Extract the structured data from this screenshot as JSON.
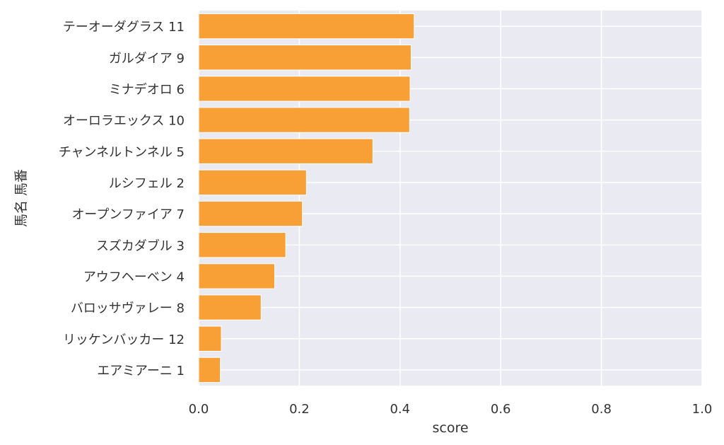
{
  "chart_data": {
    "type": "bar",
    "orientation": "horizontal",
    "categories": [
      "テーオーダグラス 11",
      "ガルダイア 9",
      "ミナデオロ 6",
      "オーロラエックス 10",
      "チャンネルトンネル 5",
      "ルシフェル 2",
      "オープンファイア 7",
      "スズカダブル 3",
      "アウフヘーベン 4",
      "バロッサヴァレー 8",
      "リッケンバッカー 12",
      "エアミアーニ 1"
    ],
    "values": [
      0.428,
      0.422,
      0.42,
      0.419,
      0.346,
      0.214,
      0.206,
      0.173,
      0.151,
      0.124,
      0.045,
      0.043
    ],
    "xlabel": "score",
    "ylabel": "馬名 馬番",
    "xlim": [
      0,
      1.0
    ],
    "xticks": [
      "0.0",
      "0.2",
      "0.4",
      "0.6",
      "0.8",
      "1.0"
    ],
    "grid": true,
    "colors": {
      "bar": "#f99b2a",
      "bar_edge": "#ffffff",
      "plot_background": "#eaeaf2",
      "grid": "#ffffff",
      "text": "#333333"
    }
  }
}
